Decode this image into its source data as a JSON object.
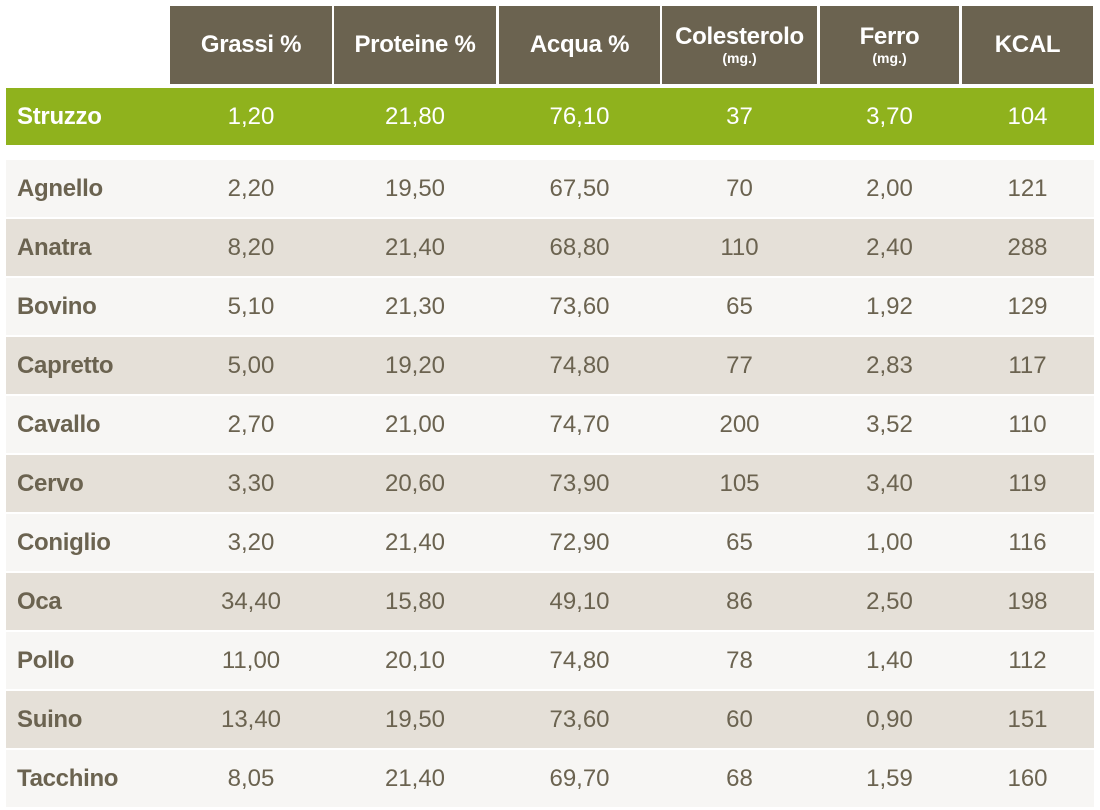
{
  "colors": {
    "header_bg": "#6b6350",
    "highlight_row": "#8fb21d",
    "row_light": "#f7f6f4",
    "row_dark": "#e5e0d8",
    "text": "#6b6350",
    "text_on_dark": "#ffffff"
  },
  "chart_data": {
    "type": "table",
    "columns": [
      {
        "label": "Grassi %",
        "unit": ""
      },
      {
        "label": "Proteine %",
        "unit": ""
      },
      {
        "label": "Acqua %",
        "unit": ""
      },
      {
        "label": "Colesterolo",
        "unit": "(mg.)"
      },
      {
        "label": "Ferro",
        "unit": "(mg.)"
      },
      {
        "label": "KCAL",
        "unit": ""
      }
    ],
    "rows": [
      {
        "name": "Struzzo",
        "values": [
          "1,20",
          "21,80",
          "76,10",
          "37",
          "3,70",
          "104"
        ],
        "highlight": true
      },
      {
        "name": "Agnello",
        "values": [
          "2,20",
          "19,50",
          "67,50",
          "70",
          "2,00",
          "121"
        ]
      },
      {
        "name": "Anatra",
        "values": [
          "8,20",
          "21,40",
          "68,80",
          "110",
          "2,40",
          "288"
        ]
      },
      {
        "name": "Bovino",
        "values": [
          "5,10",
          "21,30",
          "73,60",
          "65",
          "1,92",
          "129"
        ]
      },
      {
        "name": "Capretto",
        "values": [
          "5,00",
          "19,20",
          "74,80",
          "77",
          "2,83",
          "117"
        ]
      },
      {
        "name": "Cavallo",
        "values": [
          "2,70",
          "21,00",
          "74,70",
          "200",
          "3,52",
          "110"
        ]
      },
      {
        "name": "Cervo",
        "values": [
          "3,30",
          "20,60",
          "73,90",
          "105",
          "3,40",
          "119"
        ]
      },
      {
        "name": "Coniglio",
        "values": [
          "3,20",
          "21,40",
          "72,90",
          "65",
          "1,00",
          "116"
        ]
      },
      {
        "name": "Oca",
        "values": [
          "34,40",
          "15,80",
          "49,10",
          "86",
          "2,50",
          "198"
        ]
      },
      {
        "name": "Pollo",
        "values": [
          "11,00",
          "20,10",
          "74,80",
          "78",
          "1,40",
          "112"
        ]
      },
      {
        "name": "Suino",
        "values": [
          "13,40",
          "19,50",
          "73,60",
          "60",
          "0,90",
          "151"
        ]
      },
      {
        "name": "Tacchino",
        "values": [
          "8,05",
          "21,40",
          "69,70",
          "68",
          "1,59",
          "160"
        ]
      }
    ]
  }
}
